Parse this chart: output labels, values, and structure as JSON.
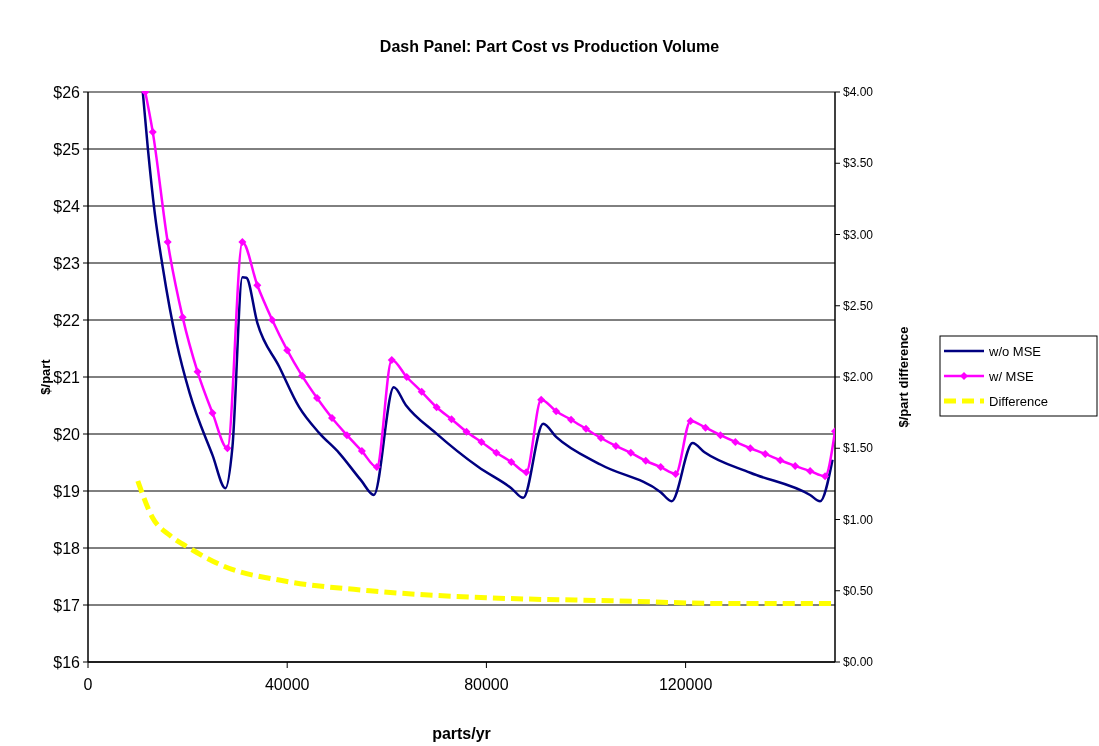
{
  "chart_data": {
    "type": "line",
    "title": "Dash Panel: Part Cost vs Production Volume",
    "xlabel": "parts/yr",
    "ylabel": "$/part",
    "y2label": "$/part difference",
    "xlim": [
      0,
      150000
    ],
    "xticks": [
      0,
      40000,
      80000,
      120000
    ],
    "ylim": [
      16,
      26
    ],
    "yticks": [
      {
        "value": 16,
        "label": "$16"
      },
      {
        "value": 17,
        "label": "$17"
      },
      {
        "value": 18,
        "label": "$18"
      },
      {
        "value": 19,
        "label": "$19"
      },
      {
        "value": 20,
        "label": "$20"
      },
      {
        "value": 21,
        "label": "$21"
      },
      {
        "value": 22,
        "label": "$22"
      },
      {
        "value": 23,
        "label": "$23"
      },
      {
        "value": 24,
        "label": "$24"
      },
      {
        "value": 25,
        "label": "$25"
      },
      {
        "value": 26,
        "label": "$26"
      }
    ],
    "y2lim": [
      0,
      4
    ],
    "y2ticks": [
      {
        "value": 0,
        "label": "$0.00"
      },
      {
        "value": 0.5,
        "label": "$0.50"
      },
      {
        "value": 1,
        "label": "$1.00"
      },
      {
        "value": 1.5,
        "label": "$1.50"
      },
      {
        "value": 2,
        "label": "$2.00"
      },
      {
        "value": 2.5,
        "label": "$2.50"
      },
      {
        "value": 3,
        "label": "$3.00"
      },
      {
        "value": 3.5,
        "label": "$3.50"
      },
      {
        "value": 4,
        "label": "$4.00"
      }
    ],
    "grid": "y",
    "legend": "right",
    "series": [
      {
        "name": "w/o MSE",
        "color": "#000080",
        "marker": "none",
        "line_style": "solid",
        "x": [
          11000,
          12000,
          13400,
          15000,
          17800,
          20400,
          25000,
          27600,
          29000,
          31000,
          31800,
          34000,
          38400,
          42400,
          46400,
          50400,
          54800,
          57400,
          61400,
          63800,
          69800,
          78400,
          85000,
          87400,
          91400,
          94000,
          103000,
          115000,
          117200,
          121400,
          123800,
          133000,
          145000,
          147000,
          149500
        ],
        "values": [
          26,
          25.03,
          23.88,
          22.93,
          21.6,
          20.72,
          19.63,
          19.05,
          19.77,
          22.75,
          22.74,
          21.95,
          21.18,
          20.47,
          20.02,
          19.67,
          19.19,
          18.93,
          20.82,
          20.51,
          20.02,
          19.42,
          19.05,
          18.88,
          20.18,
          19.95,
          19.46,
          18.98,
          18.82,
          19.84,
          19.68,
          19.32,
          18.93,
          18.82,
          19.55
        ]
      },
      {
        "name": "w/ MSE",
        "color": "#ff00ff",
        "marker": "diamond",
        "line_style": "solid",
        "x": [
          11500,
          13000,
          16000,
          19000,
          22000,
          25000,
          28000,
          31000,
          34000,
          37000,
          40000,
          43000,
          46000,
          49000,
          52000,
          55000,
          58000,
          61000,
          64000,
          67000,
          70000,
          73000,
          76000,
          79000,
          82000,
          85000,
          88000,
          91000,
          94000,
          97000,
          100000,
          103000,
          106000,
          109000,
          112000,
          115000,
          118000,
          121000,
          124000,
          127000,
          130000,
          133000,
          136000,
          139000,
          142000,
          145000,
          148000,
          150000
        ],
        "values": [
          26,
          25.3,
          23.37,
          22.05,
          21.09,
          20.37,
          19.75,
          23.37,
          22.61,
          22,
          21.47,
          21.02,
          20.63,
          20.28,
          19.98,
          19.7,
          19.42,
          21.3,
          21,
          20.74,
          20.47,
          20.26,
          20.04,
          19.86,
          19.67,
          19.51,
          19.33,
          20.6,
          20.4,
          20.25,
          20.09,
          19.93,
          19.79,
          19.67,
          19.53,
          19.42,
          19.3,
          20.23,
          20.11,
          19.98,
          19.86,
          19.75,
          19.65,
          19.54,
          19.44,
          19.35,
          19.26,
          20.05
        ]
      },
      {
        "name": "Difference",
        "color": "#ffff00",
        "marker": "none",
        "line_style": "dashed",
        "axis": "y2",
        "x": [
          10000,
          13000,
          16400,
          20800,
          27400,
          39200,
          56600,
          80800,
          105000,
          129200,
          149200
        ],
        "values": [
          1.27,
          1.01,
          0.89,
          0.79,
          0.67,
          0.57,
          0.5,
          0.45,
          0.43,
          0.41,
          0.41
        ]
      }
    ]
  }
}
